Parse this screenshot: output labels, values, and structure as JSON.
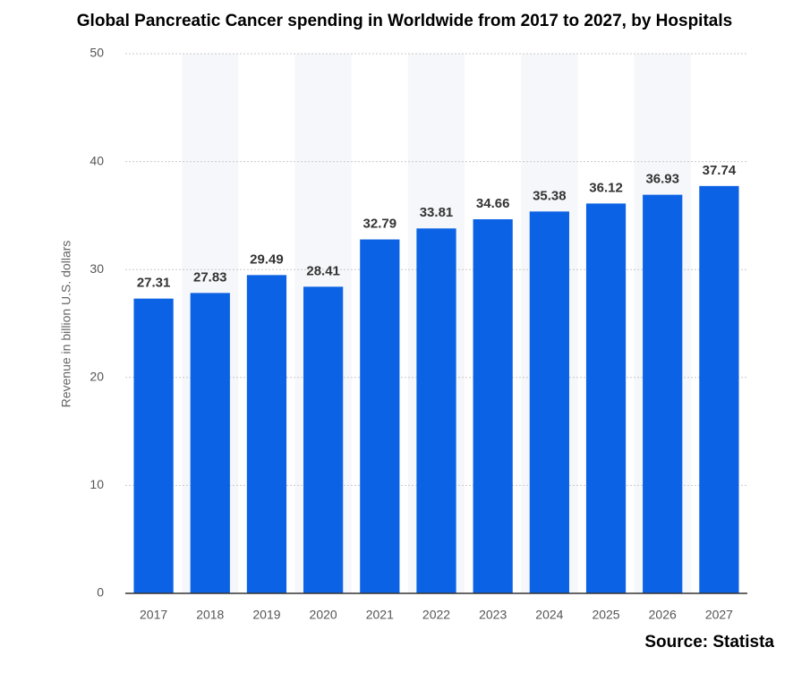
{
  "chart_data": {
    "type": "bar",
    "title": "Global Pancreatic Cancer spending in Worldwide from 2017 to 2027, by Hospitals",
    "y_label": "Revenue in billion U.S. dollars",
    "source": "Source: Statista",
    "categories": [
      "2017",
      "2018",
      "2019",
      "2020",
      "2021",
      "2022",
      "2023",
      "2024",
      "2025",
      "2026",
      "2027"
    ],
    "values": [
      27.31,
      27.83,
      29.49,
      28.41,
      32.79,
      33.81,
      34.66,
      35.38,
      36.12,
      36.93,
      37.74
    ],
    "color": "#0c62e4",
    "ylim": [
      0,
      50
    ],
    "yticks": [
      0,
      10,
      20,
      30,
      40,
      50
    ],
    "grid": true
  }
}
